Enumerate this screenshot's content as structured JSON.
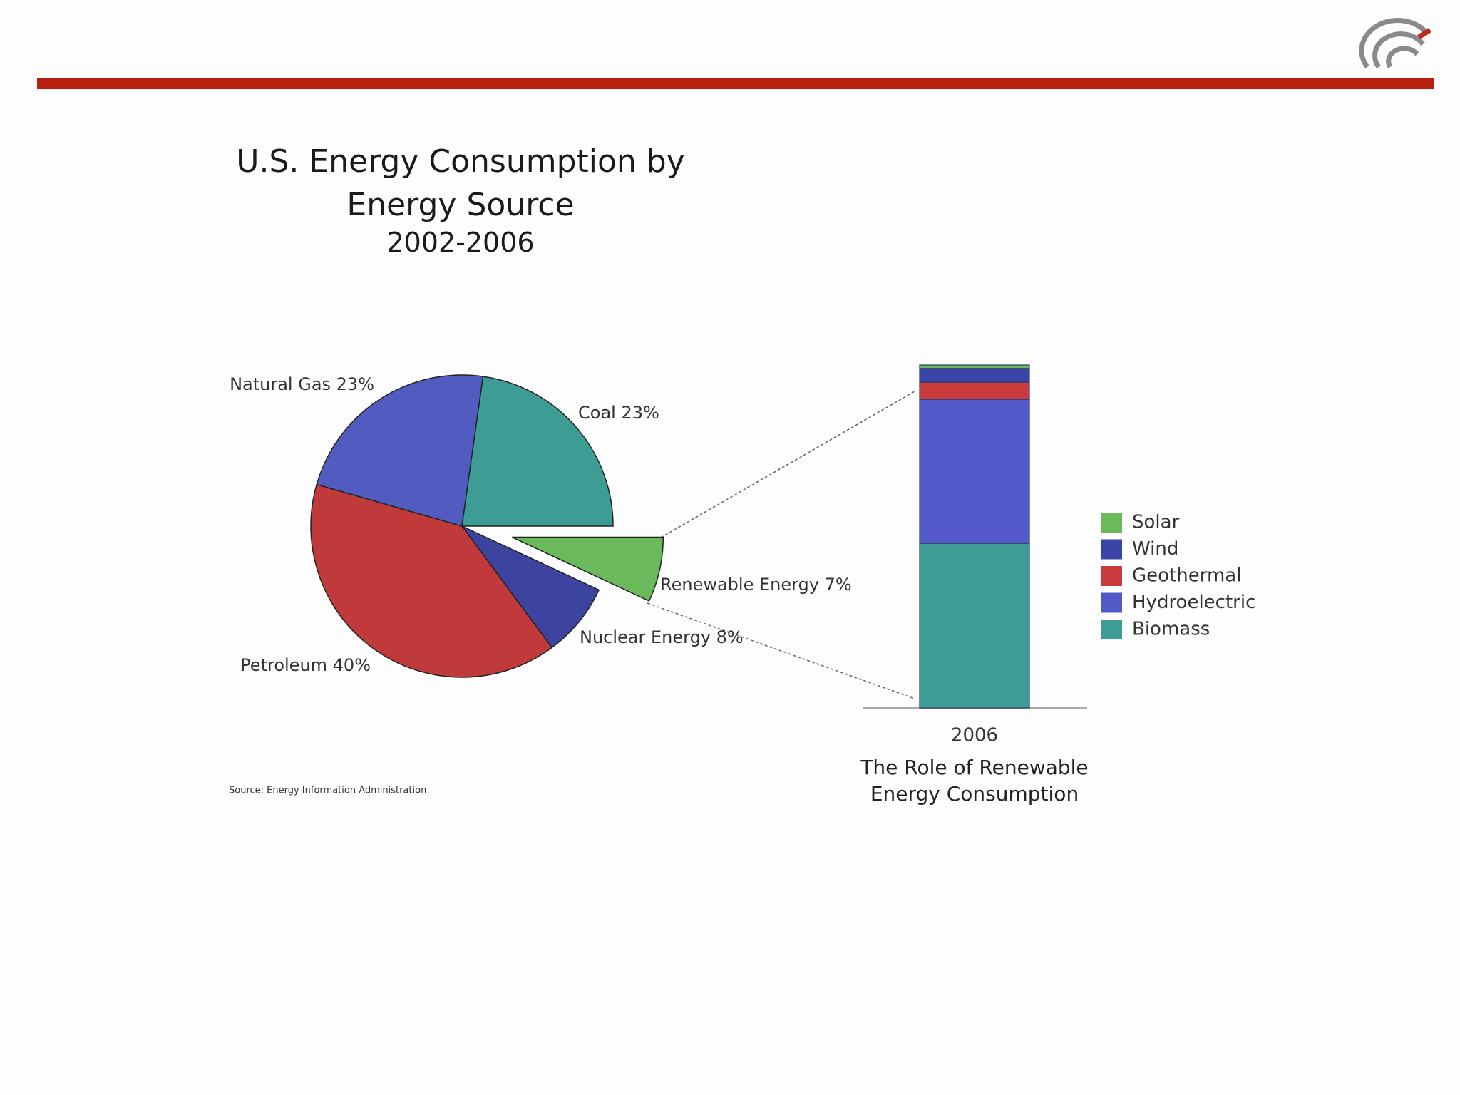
{
  "chart_data": [
    {
      "type": "pie",
      "title": "U.S. Energy Consumption by Energy Source",
      "subtitle": "2002-2006",
      "values": [
        7,
        8,
        40,
        23,
        23
      ],
      "value_labels": [
        "Renewable Energy 7%",
        "Nuclear Energy 8%",
        "Petroleum 40%",
        "Natural Gas 23%",
        "Coal 23%"
      ],
      "colors": [
        "#6ab95a",
        "#3c44a0",
        "#c03a3c",
        "#525cc0",
        "#3d9c94"
      ],
      "explode": [
        true,
        false,
        false,
        false,
        false
      ],
      "source": "Source:  Energy Information Administration"
    },
    {
      "type": "stacked-bar",
      "title": "The Role of Renewable Energy Consumption",
      "categories": [
        "2006"
      ],
      "ylim": [
        0,
        100
      ],
      "series": [
        {
          "name": "Biomass",
          "color": "#3d9c94",
          "values": [
            48
          ]
        },
        {
          "name": "Hydroelectric",
          "color": "#5459c9",
          "values": [
            42
          ]
        },
        {
          "name": "Geothermal",
          "color": "#c83a3c",
          "values": [
            5
          ]
        },
        {
          "name": "Wind",
          "color": "#3a43a8",
          "values": [
            4
          ]
        },
        {
          "name": "Solar",
          "color": "#6ab95a",
          "values": [
            1
          ]
        }
      ]
    }
  ]
}
